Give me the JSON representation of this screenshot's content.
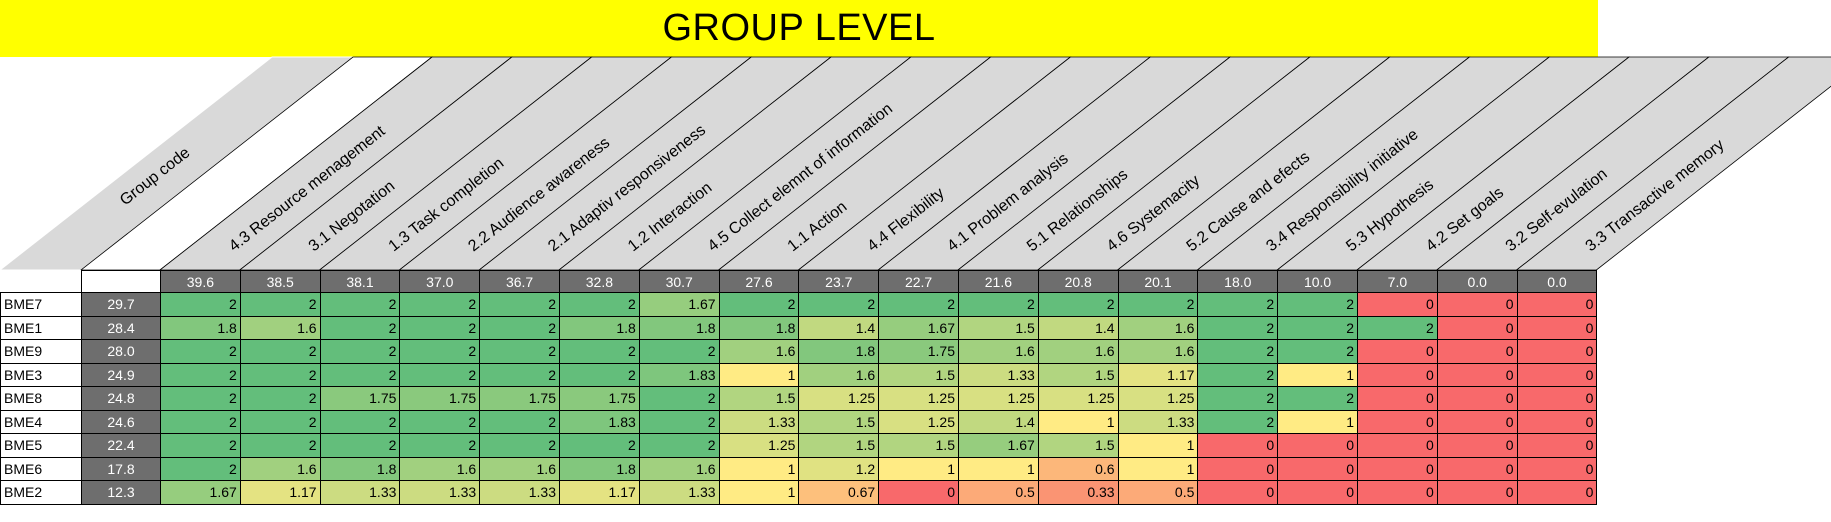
{
  "title": "GROUP LEVEL",
  "chart_data": {
    "type": "table",
    "title": "GROUP LEVEL",
    "header_label": "Group code",
    "columns": [
      {
        "label": "4.3 Resource menagement",
        "score": "39.6"
      },
      {
        "label": "3.1 Negotation",
        "score": "38.5"
      },
      {
        "label": "1.3 Task completion",
        "score": "38.1"
      },
      {
        "label": "2.2 Audience awareness",
        "score": "37.0"
      },
      {
        "label": "2.1 Adaptiv responsiveness",
        "score": "36.7"
      },
      {
        "label": "1.2 Interaction",
        "score": "32.8"
      },
      {
        "label": "4.5 Collect elemnt of information",
        "score": "30.7"
      },
      {
        "label": "1.1 Action",
        "score": "27.6"
      },
      {
        "label": "4.4 Flexibility",
        "score": "23.7"
      },
      {
        "label": "4.1 Problem analysis",
        "score": "22.7"
      },
      {
        "label": "5.1 Relationships",
        "score": "21.6"
      },
      {
        "label": "4.6 Systemacity",
        "score": "20.8"
      },
      {
        "label": "5.2 Cause and efects",
        "score": "20.1"
      },
      {
        "label": "3.4 Responsibility initiative",
        "score": "18.0"
      },
      {
        "label": "5.3 Hypothesis",
        "score": "10.0"
      },
      {
        "label": "4.2 Set goals",
        "score": "7.0"
      },
      {
        "label": "3.2 Self-evulation",
        "score": "0.0"
      },
      {
        "label": "3.3 Transactive memory",
        "score": "0.0"
      }
    ],
    "rows": [
      {
        "code": "BME7",
        "total": "29.7",
        "values": [
          2,
          2,
          2,
          2,
          2,
          2,
          1.67,
          2,
          2,
          2,
          2,
          2,
          2,
          2,
          2,
          0,
          0,
          0
        ]
      },
      {
        "code": "BME1",
        "total": "28.4",
        "values": [
          1.8,
          1.6,
          2,
          2,
          2,
          1.8,
          1.8,
          1.8,
          1.4,
          1.67,
          1.5,
          1.4,
          1.6,
          2,
          2,
          2,
          0,
          0
        ]
      },
      {
        "code": "BME9",
        "total": "28.0",
        "values": [
          2,
          2,
          2,
          2,
          2,
          2,
          2,
          1.6,
          1.8,
          1.75,
          1.6,
          1.6,
          1.6,
          2,
          2,
          0,
          0,
          0
        ]
      },
      {
        "code": "BME3",
        "total": "24.9",
        "values": [
          2,
          2,
          2,
          2,
          2,
          2,
          1.83,
          1,
          1.6,
          1.5,
          1.33,
          1.5,
          1.17,
          2,
          1,
          0,
          0,
          0
        ]
      },
      {
        "code": "BME8",
        "total": "24.8",
        "values": [
          2,
          2,
          1.75,
          1.75,
          1.75,
          1.75,
          2,
          1.5,
          1.25,
          1.25,
          1.25,
          1.25,
          1.25,
          2,
          2,
          0,
          0,
          0
        ]
      },
      {
        "code": "BME4",
        "total": "24.6",
        "values": [
          2,
          2,
          2,
          2,
          2,
          1.83,
          2,
          1.33,
          1.5,
          1.25,
          1.4,
          1,
          1.33,
          2,
          1,
          0,
          0,
          0
        ]
      },
      {
        "code": "BME5",
        "total": "22.4",
        "values": [
          2,
          2,
          2,
          2,
          2,
          2,
          2,
          1.25,
          1.5,
          1.5,
          1.67,
          1.5,
          1,
          0,
          0,
          0,
          0,
          0
        ]
      },
      {
        "code": "BME6",
        "total": "17.8",
        "values": [
          2,
          1.6,
          1.8,
          1.6,
          1.6,
          1.8,
          1.6,
          1,
          1.2,
          1,
          1,
          0.6,
          1,
          0,
          0,
          0,
          0,
          0
        ]
      },
      {
        "code": "BME2",
        "total": "12.3",
        "values": [
          1.67,
          1.17,
          1.33,
          1.33,
          1.33,
          1.17,
          1.33,
          1,
          0.67,
          0,
          0.5,
          0.33,
          0.5,
          0,
          0,
          0,
          0,
          0
        ]
      }
    ],
    "color_scale": {
      "min": 0,
      "max": 2,
      "colors": [
        "#f8696b",
        "#ffeb84",
        "#63be7b"
      ]
    },
    "header_color": "#d9d9d9",
    "score_bar_color": "#6e6e6e"
  }
}
